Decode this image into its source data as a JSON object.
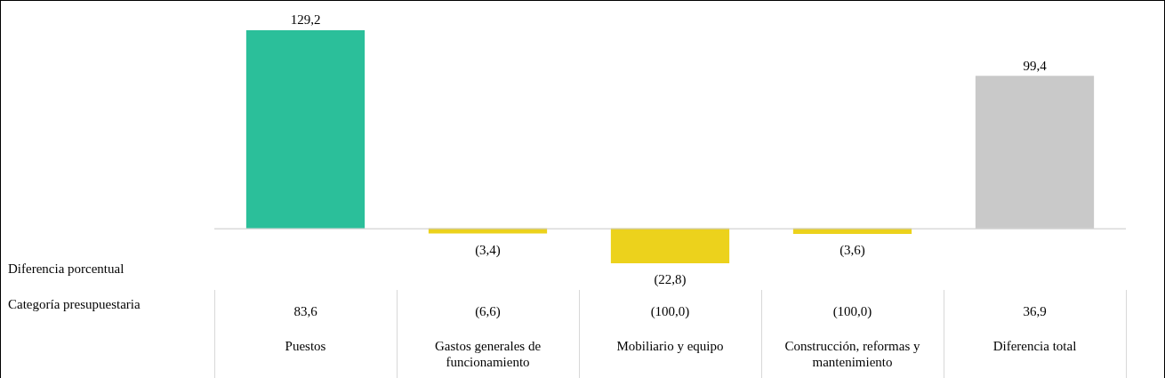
{
  "chart_data": {
    "type": "bar",
    "categories": [
      "Puestos",
      "Gastos generales de funcionamiento",
      "Mobiliario y equipo",
      "Construcción, reformas y mantenimiento",
      "Diferencia total"
    ],
    "values": [
      129.2,
      -3.4,
      -22.8,
      -3.6,
      99.4
    ],
    "value_labels": [
      "129,2",
      "(3,4)",
      "(22,8)",
      "(3,6)",
      "99,4"
    ],
    "colors": [
      "#2bbf9a",
      "#ecd21c",
      "#ecd21c",
      "#ecd21c",
      "#c9c9c9"
    ],
    "annotations": [
      "Diferencia porcentual",
      "Categoría presupuestaria",
      "83,6",
      "(6,6)",
      "(100,0)",
      "(100,0)",
      "36,9"
    ],
    "legend": false
  }
}
